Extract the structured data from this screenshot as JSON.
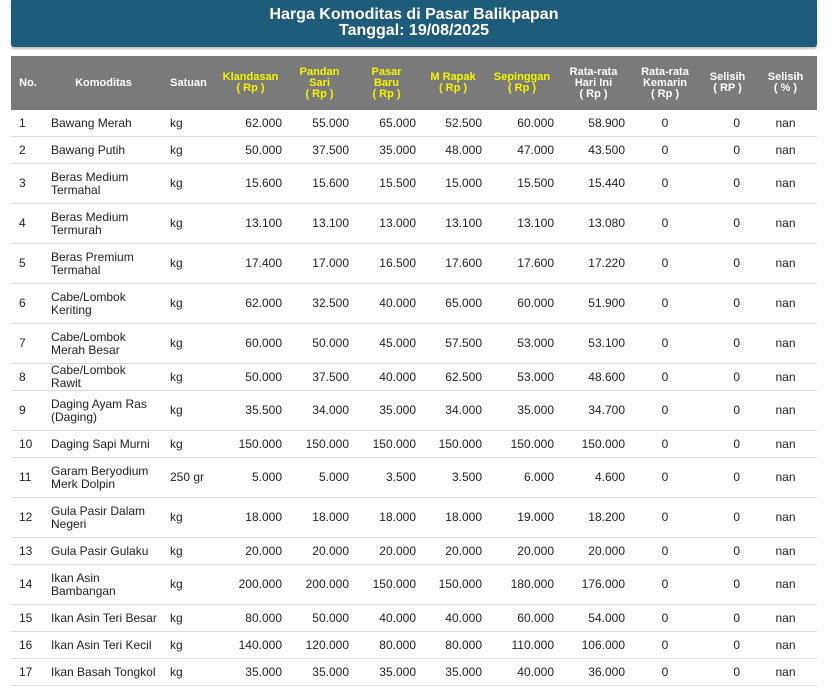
{
  "title": "Harga Komoditas di Pasar Balikpapan",
  "date": "Tanggal: 19/08/2025",
  "columns": {
    "no": "No.",
    "komoditas": "Komoditas",
    "satuan": "Satuan",
    "klandasan": [
      "Klandasan",
      "( Rp )"
    ],
    "pandan_sari": [
      "Pandan",
      "Sari",
      "( Rp )"
    ],
    "pasar_baru": [
      "Pasar",
      "Baru",
      "( Rp )"
    ],
    "m_rapak": [
      "M Rapak",
      "( Rp )"
    ],
    "sepinggan": [
      "Sepinggan",
      "( Rp )"
    ],
    "rata_ini": [
      "Rata-rata",
      "Hari Ini",
      "( Rp )"
    ],
    "rata_kemarin": [
      "Rata-rata",
      "Kemarin",
      "( Rp )"
    ],
    "selisih_rp": [
      "Selisih",
      "( RP )"
    ],
    "selisih_pct": [
      "Selisih",
      "( % )"
    ]
  },
  "colors": {
    "header_bg": "#1e5c7c",
    "table_header_bg": "#7a7a7a",
    "market_header_text": "#f5f500"
  },
  "rows": [
    {
      "no": "1",
      "komoditas": "Bawang Merah",
      "satuan": "kg",
      "klandasan": "62.000",
      "pandan_sari": "55.000",
      "pasar_baru": "65.000",
      "m_rapak": "52.500",
      "sepinggan": "60.000",
      "rata_ini": "58.900",
      "rata_kemarin": "0",
      "selisih_rp": "0",
      "selisih_pct": "nan"
    },
    {
      "no": "2",
      "komoditas": "Bawang Putih",
      "satuan": "kg",
      "klandasan": "50.000",
      "pandan_sari": "37.500",
      "pasar_baru": "35.000",
      "m_rapak": "48.000",
      "sepinggan": "47.000",
      "rata_ini": "43.500",
      "rata_kemarin": "0",
      "selisih_rp": "0",
      "selisih_pct": "nan"
    },
    {
      "no": "3",
      "komoditas": "Beras Medium Termahal",
      "satuan": "kg",
      "klandasan": "15.600",
      "pandan_sari": "15.600",
      "pasar_baru": "15.500",
      "m_rapak": "15.000",
      "sepinggan": "15.500",
      "rata_ini": "15.440",
      "rata_kemarin": "0",
      "selisih_rp": "0",
      "selisih_pct": "nan"
    },
    {
      "no": "4",
      "komoditas": "Beras Medium Termurah",
      "satuan": "kg",
      "klandasan": "13.100",
      "pandan_sari": "13.100",
      "pasar_baru": "13.000",
      "m_rapak": "13.100",
      "sepinggan": "13.100",
      "rata_ini": "13.080",
      "rata_kemarin": "0",
      "selisih_rp": "0",
      "selisih_pct": "nan"
    },
    {
      "no": "5",
      "komoditas": "Beras Premium Termahal",
      "satuan": "kg",
      "klandasan": "17.400",
      "pandan_sari": "17.000",
      "pasar_baru": "16.500",
      "m_rapak": "17.600",
      "sepinggan": "17.600",
      "rata_ini": "17.220",
      "rata_kemarin": "0",
      "selisih_rp": "0",
      "selisih_pct": "nan"
    },
    {
      "no": "6",
      "komoditas": "Cabe/Lombok Keriting",
      "satuan": "kg",
      "klandasan": "62.000",
      "pandan_sari": "32.500",
      "pasar_baru": "40.000",
      "m_rapak": "65.000",
      "sepinggan": "60.000",
      "rata_ini": "51.900",
      "rata_kemarin": "0",
      "selisih_rp": "0",
      "selisih_pct": "nan"
    },
    {
      "no": "7",
      "komoditas": "Cabe/Lombok Merah Besar",
      "satuan": "kg",
      "klandasan": "60.000",
      "pandan_sari": "50.000",
      "pasar_baru": "45.000",
      "m_rapak": "57.500",
      "sepinggan": "53.000",
      "rata_ini": "53.100",
      "rata_kemarin": "0",
      "selisih_rp": "0",
      "selisih_pct": "nan"
    },
    {
      "no": "8",
      "komoditas": "Cabe/Lombok Rawit",
      "satuan": "kg",
      "klandasan": "50.000",
      "pandan_sari": "37.500",
      "pasar_baru": "40.000",
      "m_rapak": "62.500",
      "sepinggan": "53.000",
      "rata_ini": "48.600",
      "rata_kemarin": "0",
      "selisih_rp": "0",
      "selisih_pct": "nan"
    },
    {
      "no": "9",
      "komoditas": "Daging Ayam Ras (Daging)",
      "satuan": "kg",
      "klandasan": "35.500",
      "pandan_sari": "34.000",
      "pasar_baru": "35.000",
      "m_rapak": "34.000",
      "sepinggan": "35.000",
      "rata_ini": "34.700",
      "rata_kemarin": "0",
      "selisih_rp": "0",
      "selisih_pct": "nan"
    },
    {
      "no": "10",
      "komoditas": "Daging Sapi Murni",
      "satuan": "kg",
      "klandasan": "150.000",
      "pandan_sari": "150.000",
      "pasar_baru": "150.000",
      "m_rapak": "150.000",
      "sepinggan": "150.000",
      "rata_ini": "150.000",
      "rata_kemarin": "0",
      "selisih_rp": "0",
      "selisih_pct": "nan"
    },
    {
      "no": "11",
      "komoditas": "Garam Beryodium Merk Dolpin",
      "satuan": "250 gr",
      "klandasan": "5.000",
      "pandan_sari": "5.000",
      "pasar_baru": "3.500",
      "m_rapak": "3.500",
      "sepinggan": "6.000",
      "rata_ini": "4.600",
      "rata_kemarin": "0",
      "selisih_rp": "0",
      "selisih_pct": "nan"
    },
    {
      "no": "12",
      "komoditas": "Gula Pasir Dalam Negeri",
      "satuan": "kg",
      "klandasan": "18.000",
      "pandan_sari": "18.000",
      "pasar_baru": "18.000",
      "m_rapak": "18.000",
      "sepinggan": "19.000",
      "rata_ini": "18.200",
      "rata_kemarin": "0",
      "selisih_rp": "0",
      "selisih_pct": "nan"
    },
    {
      "no": "13",
      "komoditas": "Gula Pasir Gulaku",
      "satuan": "kg",
      "klandasan": "20.000",
      "pandan_sari": "20.000",
      "pasar_baru": "20.000",
      "m_rapak": "20.000",
      "sepinggan": "20.000",
      "rata_ini": "20.000",
      "rata_kemarin": "0",
      "selisih_rp": "0",
      "selisih_pct": "nan"
    },
    {
      "no": "14",
      "komoditas": "Ikan Asin Bambangan",
      "satuan": "kg",
      "klandasan": "200.000",
      "pandan_sari": "200.000",
      "pasar_baru": "150.000",
      "m_rapak": "150.000",
      "sepinggan": "180.000",
      "rata_ini": "176.000",
      "rata_kemarin": "0",
      "selisih_rp": "0",
      "selisih_pct": "nan"
    },
    {
      "no": "15",
      "komoditas": "Ikan Asin Teri Besar",
      "satuan": "kg",
      "klandasan": "80.000",
      "pandan_sari": "50.000",
      "pasar_baru": "40.000",
      "m_rapak": "40.000",
      "sepinggan": "60.000",
      "rata_ini": "54.000",
      "rata_kemarin": "0",
      "selisih_rp": "0",
      "selisih_pct": "nan"
    },
    {
      "no": "16",
      "komoditas": "Ikan Asin Teri Kecil",
      "satuan": "kg",
      "klandasan": "140.000",
      "pandan_sari": "120.000",
      "pasar_baru": "80.000",
      "m_rapak": "80.000",
      "sepinggan": "110.000",
      "rata_ini": "106.000",
      "rata_kemarin": "0",
      "selisih_rp": "0",
      "selisih_pct": "nan"
    },
    {
      "no": "17",
      "komoditas": "Ikan Basah Tongkol",
      "satuan": "kg",
      "klandasan": "35.000",
      "pandan_sari": "35.000",
      "pasar_baru": "35.000",
      "m_rapak": "35.000",
      "sepinggan": "40.000",
      "rata_ini": "36.000",
      "rata_kemarin": "0",
      "selisih_rp": "0",
      "selisih_pct": "nan"
    }
  ]
}
